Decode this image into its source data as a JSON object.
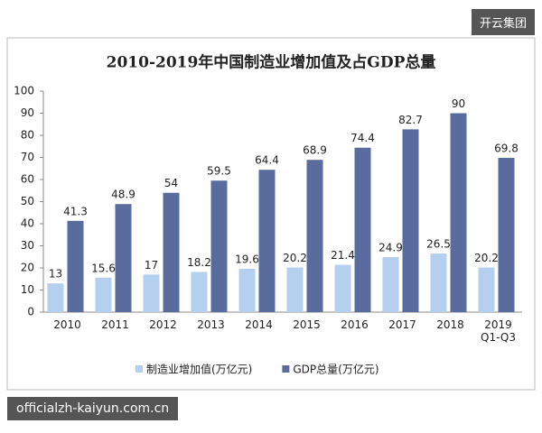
{
  "chart_data": {
    "type": "bar",
    "title": "2010-2019年中国制造业增加值及占GDP总量",
    "categories": [
      "2010",
      "2011",
      "2012",
      "2013",
      "2014",
      "2015",
      "2016",
      "2017",
      "2018",
      "2019\nQ1-Q3"
    ],
    "series": [
      {
        "name": "制造业增加值(万亿元)",
        "color": "#b4d0ee",
        "values": [
          13,
          15.6,
          17,
          18.2,
          19.6,
          20.2,
          21.4,
          24.9,
          26.5,
          20.2
        ]
      },
      {
        "name": "GDP总量(万亿元)",
        "color": "#5a6c9e",
        "values": [
          41.3,
          48.9,
          54,
          59.5,
          64.4,
          68.9,
          74.4,
          82.7,
          90,
          69.8
        ]
      }
    ],
    "ylim": [
      0,
      100
    ],
    "yticks": [
      0,
      10,
      20,
      30,
      40,
      50,
      60,
      70,
      80,
      90,
      100
    ],
    "legend": "bottom"
  },
  "watermarks": {
    "top": "开云集团",
    "bottom": "officialzh-kaiyun.com.cn"
  }
}
